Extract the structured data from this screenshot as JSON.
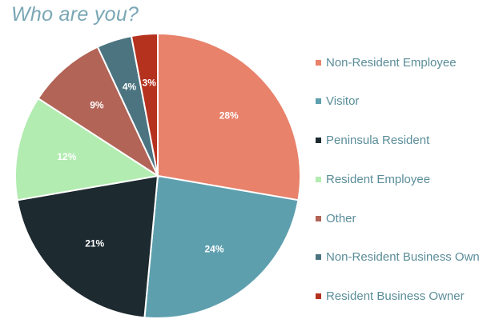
{
  "title": "Who are you?",
  "chart_data": {
    "type": "pie",
    "title": "Who are you?",
    "legend_position": "right",
    "slices": [
      {
        "label": "Non-Resident Employee",
        "value": 28,
        "value_label": "28%",
        "color": "#e8826b"
      },
      {
        "label": "Visitor",
        "value": 24,
        "value_label": "24%",
        "color": "#5e9fae"
      },
      {
        "label": "Peninsula Resident",
        "value": 21,
        "value_label": "21%",
        "color": "#1d2a30"
      },
      {
        "label": "Resident Employee",
        "value": 12,
        "value_label": "12%",
        "color": "#b2ecb0"
      },
      {
        "label": "Other",
        "value": 9,
        "value_label": "9%",
        "color": "#b26457"
      },
      {
        "label": "Non-Resident Business Own",
        "value": 4,
        "value_label": "4%",
        "color": "#4b7480"
      },
      {
        "label": "Resident Business Owner",
        "value": 3,
        "value_label": "3%",
        "color": "#b5321f"
      }
    ]
  }
}
